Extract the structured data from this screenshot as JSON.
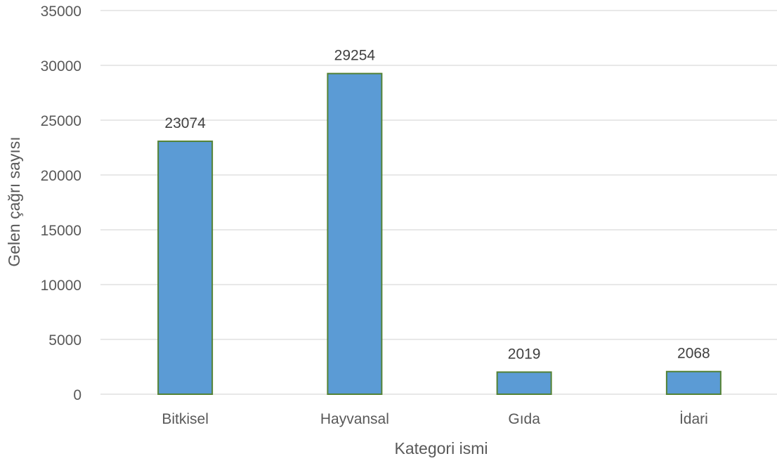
{
  "chart_data": {
    "type": "bar",
    "title": "",
    "xlabel": "Kategori ismi",
    "ylabel": "Gelen çağrı sayısı",
    "categories": [
      "Bitkisel",
      "Hayvansal",
      "Gıda",
      "İdari"
    ],
    "values": [
      23074,
      29254,
      2019,
      2068
    ],
    "ylim": [
      0,
      35000
    ],
    "yticks": [
      0,
      5000,
      10000,
      15000,
      20000,
      25000,
      30000,
      35000
    ],
    "grid": true,
    "legend": "none",
    "data_labels": true,
    "colors": {
      "bar_fill": "#5b9bd5",
      "bar_stroke": "#548235",
      "grid": "#d9d9d9",
      "text": "#404040"
    }
  }
}
